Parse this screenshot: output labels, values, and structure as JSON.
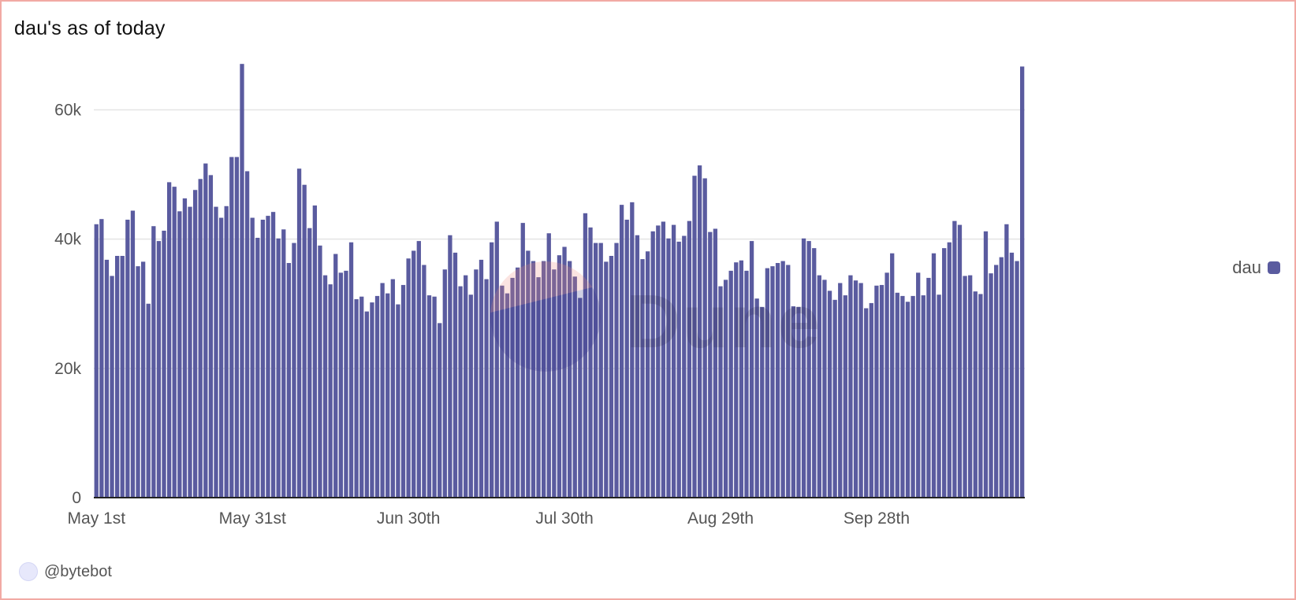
{
  "title": "dau's as of today",
  "author": "@bytebot",
  "watermark_text": "Dune",
  "legend": {
    "label": "dau",
    "color": "#5a5b9f"
  },
  "chart_data": {
    "type": "bar",
    "title": "dau's as of today",
    "xlabel": "",
    "ylabel": "",
    "ylim": [
      0,
      67000
    ],
    "yticks": [
      0,
      20000,
      40000,
      60000
    ],
    "ytick_labels": [
      "0",
      "20k",
      "40k",
      "60k"
    ],
    "xtick_labels": [
      "May 1st",
      "May 31st",
      "Jun 30th",
      "Jul 30th",
      "Aug 29th",
      "Sep 28th"
    ],
    "xtick_dates": [
      "2023-05-01",
      "2023-05-31",
      "2023-06-30",
      "2023-07-30",
      "2023-08-29",
      "2023-09-28"
    ],
    "grid": true,
    "legend_position": "right",
    "start_date": "2023-05-01",
    "series": [
      {
        "name": "dau",
        "color": "#5a5b9f",
        "values": [
          42300,
          43100,
          36800,
          34300,
          37400,
          37400,
          43000,
          44400,
          35800,
          36500,
          30000,
          42000,
          39700,
          41300,
          48800,
          48100,
          44300,
          46300,
          45000,
          47600,
          49300,
          51700,
          49900,
          45000,
          43300,
          45100,
          52700,
          52700,
          67100,
          50500,
          43300,
          40200,
          43000,
          43600,
          44200,
          40100,
          41500,
          36300,
          39400,
          50900,
          48400,
          41700,
          45200,
          39000,
          34400,
          33000,
          37700,
          34800,
          35100,
          39500,
          30700,
          31100,
          28800,
          30200,
          31200,
          33200,
          31600,
          33800,
          29900,
          32900,
          37000,
          38200,
          39700,
          36000,
          31300,
          31100,
          27000,
          35300,
          40600,
          37900,
          32700,
          34400,
          31400,
          35300,
          36800,
          33800,
          39500,
          42700,
          32800,
          31600,
          34000,
          35600,
          42500,
          38200,
          36600,
          34100,
          36600,
          40900,
          35300,
          37500,
          38800,
          36600,
          34200,
          30900,
          44000,
          41800,
          39400,
          39400,
          36500,
          37400,
          39400,
          45300,
          43000,
          45700,
          40600,
          36900,
          38100,
          41200,
          42100,
          42700,
          40100,
          42200,
          39600,
          40500,
          42800,
          49800,
          51400,
          49400,
          41100,
          41600,
          32700,
          33700,
          35100,
          36400,
          36700,
          35100,
          39700,
          30800,
          29500,
          35500,
          35800,
          36300,
          36600,
          36000,
          29600,
          29500,
          40100,
          39700,
          38600,
          34400,
          33700,
          32000,
          30600,
          33200,
          31300,
          34400,
          33600,
          33200,
          29300,
          30100,
          32800,
          32900,
          34800,
          37800,
          31700,
          31200,
          30300,
          31200,
          34800,
          31300,
          34000,
          37800,
          31400,
          38600,
          39500,
          42800,
          42200,
          34300,
          34400,
          31900,
          31500,
          41200,
          34700,
          36000,
          37200,
          42300,
          37900,
          36600,
          66700
        ]
      }
    ]
  }
}
